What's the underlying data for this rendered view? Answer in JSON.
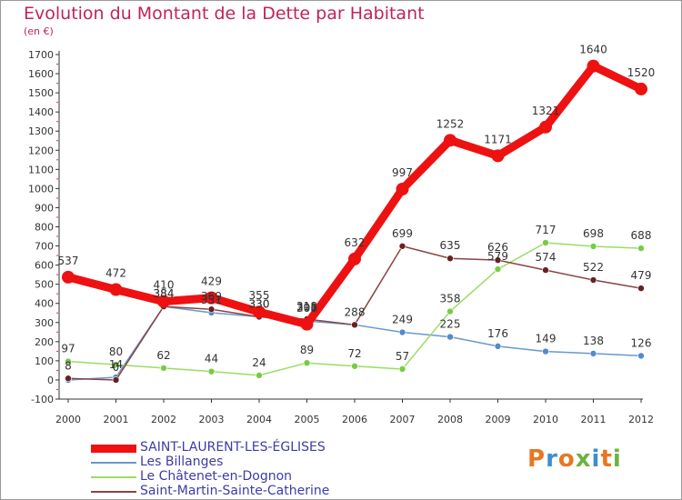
{
  "title": "Evolution du Montant de la Dette par Habitant",
  "unit_label": "(en €)",
  "logo": {
    "text": "Proxiti",
    "colors": [
      "#e87722",
      "#3c8fd0",
      "#e87722",
      "#6cb33f",
      "#3c8fd0",
      "#e87722",
      "#6cb33f"
    ]
  },
  "chart_data": {
    "type": "line",
    "title": "Evolution du Montant de la Dette par Habitant",
    "ylabel": "(en €)",
    "xlabel": "",
    "x": [
      "2000",
      "2001",
      "2002",
      "2003",
      "2004",
      "2005",
      "2006",
      "2007",
      "2008",
      "2009",
      "2010",
      "2011",
      "2012"
    ],
    "ylim": [
      -100,
      1700
    ],
    "yticks": [
      -100,
      0,
      100,
      200,
      300,
      400,
      500,
      600,
      700,
      800,
      900,
      1000,
      1100,
      1200,
      1300,
      1400,
      1500,
      1600,
      1700
    ],
    "grid": false,
    "legend": "bottom-left",
    "series": [
      {
        "name": "SAINT-LAURENT-LES-ÉGLISES",
        "color": "#ee1111",
        "marker": "#ee1111",
        "values": [
          537,
          472,
          410,
          429,
          355,
          291,
          632,
          997,
          1252,
          1171,
          1321,
          1640,
          1520
        ]
      },
      {
        "name": "Les Billanges",
        "color": "#6699cc",
        "marker": "#5588cc",
        "values": [
          0,
          14,
          384,
          351,
          330,
          308,
          288,
          249,
          225,
          176,
          149,
          138,
          126
        ]
      },
      {
        "name": "Le Châtenet-en-Dognon",
        "color": "#99dd66",
        "marker": "#77cc44",
        "values": [
          97,
          80,
          62,
          44,
          24,
          89,
          72,
          57,
          358,
          579,
          717,
          698,
          688
        ]
      },
      {
        "name": "Saint-Martin-Sainte-Catherine",
        "color": "#884444",
        "marker": "#662222",
        "values": [
          8,
          0,
          384,
          369,
          330,
          318,
          288,
          699,
          635,
          626,
          574,
          522,
          479
        ]
      }
    ],
    "data_labels": [
      [
        {
          "i": 0,
          "text": "537"
        },
        {
          "i": 1,
          "text": "472"
        },
        {
          "i": 2,
          "text": "410"
        },
        {
          "i": 3,
          "text": "429"
        },
        {
          "i": 4,
          "text": "355"
        },
        {
          "i": 5,
          "text": "291"
        },
        {
          "i": 6,
          "text": "632"
        },
        {
          "i": 7,
          "text": "997"
        },
        {
          "i": 8,
          "text": "1252"
        },
        {
          "i": 9,
          "text": "1171"
        },
        {
          "i": 10,
          "text": "1321"
        },
        {
          "i": 11,
          "text": "1640"
        },
        {
          "i": 12,
          "text": "1520"
        }
      ],
      [
        {
          "i": 1,
          "text": "14"
        },
        {
          "i": 2,
          "text": "384"
        },
        {
          "i": 3,
          "text": "351"
        },
        {
          "i": 4,
          "text": "330"
        },
        {
          "i": 5,
          "text": "308"
        },
        {
          "i": 7,
          "text": "249"
        },
        {
          "i": 8,
          "text": "225"
        },
        {
          "i": 9,
          "text": "176"
        },
        {
          "i": 10,
          "text": "149"
        },
        {
          "i": 11,
          "text": "138"
        },
        {
          "i": 12,
          "text": "126"
        }
      ],
      [
        {
          "i": 0,
          "text": "97"
        },
        {
          "i": 1,
          "text": "80"
        },
        {
          "i": 2,
          "text": "62"
        },
        {
          "i": 3,
          "text": "44"
        },
        {
          "i": 4,
          "text": "24"
        },
        {
          "i": 5,
          "text": "89"
        },
        {
          "i": 6,
          "text": "72"
        },
        {
          "i": 7,
          "text": "57"
        },
        {
          "i": 8,
          "text": "358"
        },
        {
          "i": 9,
          "text": "579"
        },
        {
          "i": 10,
          "text": "717"
        },
        {
          "i": 11,
          "text": "698"
        },
        {
          "i": 12,
          "text": "688"
        }
      ],
      [
        {
          "i": 0,
          "text": "8"
        },
        {
          "i": 1,
          "text": "0"
        },
        {
          "i": 2,
          "text": "384"
        },
        {
          "i": 3,
          "text": "369"
        },
        {
          "i": 4,
          "text": "330"
        },
        {
          "i": 5,
          "text": "318"
        },
        {
          "i": 6,
          "text": "288"
        },
        {
          "i": 7,
          "text": "699"
        },
        {
          "i": 8,
          "text": "635"
        },
        {
          "i": 9,
          "text": "626"
        },
        {
          "i": 10,
          "text": "574"
        },
        {
          "i": 11,
          "text": "522"
        },
        {
          "i": 12,
          "text": "479"
        }
      ]
    ]
  }
}
